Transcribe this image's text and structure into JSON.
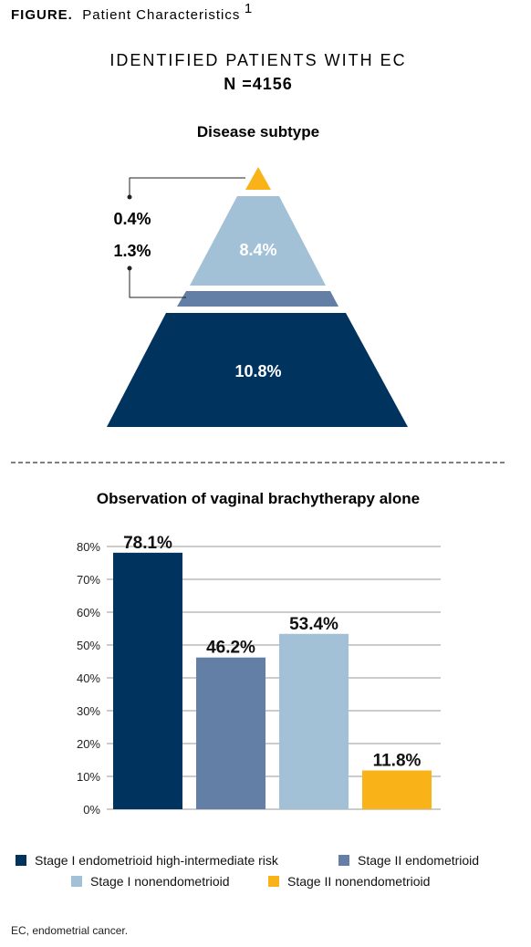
{
  "figure": {
    "label": "FIGURE.",
    "title": "Patient Characteristics",
    "superscript": "1",
    "heading": "IDENTIFIED PATIENTS WITH EC",
    "n_label": "N =4156",
    "footnote": "EC, endometrial cancer."
  },
  "colors": {
    "dark_navy": "#01335f",
    "slate_blue": "#647fa6",
    "light_blue": "#a2c1d7",
    "yellow": "#f9b318",
    "label_blue": "#1a4f86"
  },
  "chart_data": [
    {
      "type": "pyramid",
      "title": "Disease subtype",
      "segments": [
        {
          "level": 1,
          "value": 0.4,
          "label": "0.4%",
          "color": "#f9b318",
          "label_position": "outside-left"
        },
        {
          "level": 2,
          "value": 8.4,
          "label": "8.4%",
          "color": "#a2c1d7",
          "label_position": "inside"
        },
        {
          "level": 3,
          "value": 1.3,
          "label": "1.3%",
          "color": "#647fa6",
          "label_position": "outside-left"
        },
        {
          "level": 4,
          "value": 10.8,
          "label": "10.8%",
          "color": "#01335f",
          "label_position": "inside"
        }
      ]
    },
    {
      "type": "bar",
      "title": "Observation of vaginal brachytherapy alone",
      "categories": [
        "Stage I endometrioid high-intermediate risk",
        "Stage II endometrioid",
        "Stage I nonendometrioid",
        "Stage II nonendometrioid"
      ],
      "values": [
        78.1,
        46.2,
        53.4,
        11.8
      ],
      "data_labels": [
        "78.1%",
        "46.2%",
        "53.4%",
        "11.8%"
      ],
      "colors": [
        "#01335f",
        "#647fa6",
        "#a2c1d7",
        "#f9b318"
      ],
      "ylim": [
        0,
        80
      ],
      "yticks": [
        0,
        10,
        20,
        30,
        40,
        50,
        60,
        70,
        80
      ],
      "ytick_labels": [
        "0%",
        "10%",
        "20%",
        "30%",
        "40%",
        "50%",
        "60%",
        "70%",
        "80%"
      ],
      "xlabel": "",
      "ylabel": "",
      "grid": true,
      "legend": [
        {
          "name": "Stage I endometrioid high-intermediate risk",
          "color": "#01335f"
        },
        {
          "name": "Stage II endometrioid",
          "color": "#647fa6"
        },
        {
          "name": "Stage I nonendometrioid",
          "color": "#a2c1d7"
        },
        {
          "name": "Stage II nonendometrioid",
          "color": "#f9b318"
        }
      ],
      "legend_position": "bottom"
    }
  ]
}
